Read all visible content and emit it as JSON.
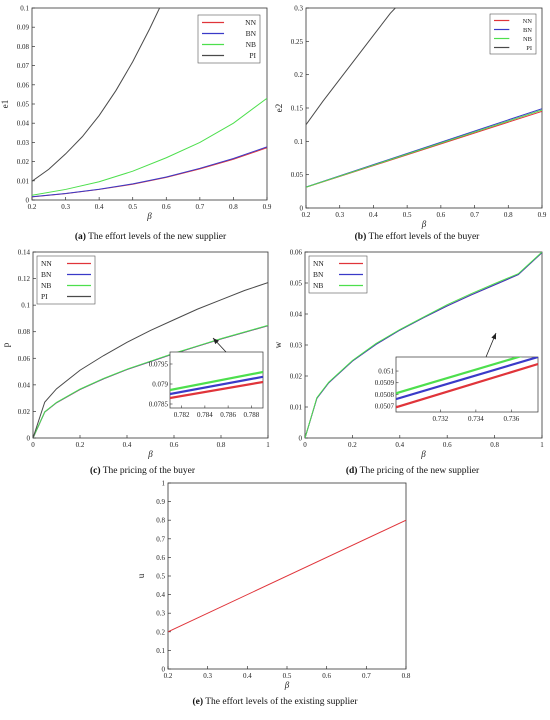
{
  "chart_data": [
    {
      "id": "a",
      "type": "line",
      "caption_tag": "(a)",
      "caption_text": "The effort levels of the new supplier",
      "xlabel": "β",
      "ylabel": "e1",
      "xlim": [
        0.2,
        0.9
      ],
      "ylim": [
        0,
        0.1
      ],
      "xticks": [
        "0.2",
        "0.3",
        "0.4",
        "0.5",
        "0.6",
        "0.7",
        "0.8",
        "0.9"
      ],
      "yticks": [
        "0",
        "0.01",
        "0.02",
        "0.03",
        "0.04",
        "0.05",
        "0.06",
        "0.07",
        "0.08",
        "0.09",
        "0.1"
      ],
      "legend_position": "top-right",
      "legend": [
        "NN",
        "BN",
        "NB",
        "PI"
      ],
      "series": [
        {
          "name": "NN",
          "color": "#e0343a",
          "x": [
            0.2,
            0.3,
            0.4,
            0.5,
            0.6,
            0.7,
            0.8,
            0.9
          ],
          "y": [
            0.0016,
            0.0033,
            0.0055,
            0.0082,
            0.0118,
            0.0162,
            0.0212,
            0.0272
          ]
        },
        {
          "name": "BN",
          "color": "#3a3ac8",
          "x": [
            0.2,
            0.3,
            0.4,
            0.5,
            0.6,
            0.7,
            0.8,
            0.9
          ],
          "y": [
            0.0017,
            0.0034,
            0.0056,
            0.0084,
            0.012,
            0.0165,
            0.0216,
            0.0277
          ]
        },
        {
          "name": "NB",
          "color": "#4ddf4d",
          "x": [
            0.2,
            0.3,
            0.4,
            0.5,
            0.6,
            0.7,
            0.8,
            0.9
          ],
          "y": [
            0.0025,
            0.0055,
            0.0095,
            0.015,
            0.022,
            0.03,
            0.04,
            0.053
          ]
        },
        {
          "name": "PI",
          "color": "#4a4a4a",
          "x": [
            0.2,
            0.25,
            0.3,
            0.35,
            0.4,
            0.45,
            0.5,
            0.55,
            0.58
          ],
          "y": [
            0.0098,
            0.016,
            0.024,
            0.033,
            0.044,
            0.057,
            0.072,
            0.089,
            0.1
          ]
        }
      ]
    },
    {
      "id": "b",
      "type": "line",
      "caption_tag": "(b)",
      "caption_text": "The effort levels of the buyer",
      "xlabel": "β",
      "ylabel": "e2",
      "xlim": [
        0.2,
        0.9
      ],
      "ylim": [
        0,
        0.3
      ],
      "xticks": [
        "0.2",
        "0.3",
        "0.4",
        "0.5",
        "0.6",
        "0.7",
        "0.8",
        "0.9"
      ],
      "yticks": [
        "0",
        "0.05",
        "0.1",
        "0.15",
        "0.2",
        "0.25",
        "0.3"
      ],
      "legend_position": "top-right",
      "legend": [
        "NN",
        "BN",
        "NB",
        "PI"
      ],
      "series": [
        {
          "name": "NN",
          "color": "#e0343a",
          "x": [
            0.2,
            0.9
          ],
          "y": [
            0.031,
            0.145
          ]
        },
        {
          "name": "BN",
          "color": "#3a3ac8",
          "x": [
            0.2,
            0.9
          ],
          "y": [
            0.0315,
            0.149
          ]
        },
        {
          "name": "NB",
          "color": "#4ddf4d",
          "x": [
            0.2,
            0.9
          ],
          "y": [
            0.0312,
            0.147
          ]
        },
        {
          "name": "PI",
          "color": "#4a4a4a",
          "x": [
            0.2,
            0.25,
            0.3,
            0.35,
            0.4,
            0.45,
            0.465
          ],
          "y": [
            0.125,
            0.16,
            0.193,
            0.226,
            0.259,
            0.292,
            0.3
          ]
        }
      ]
    },
    {
      "id": "c",
      "type": "line",
      "caption_tag": "(c)",
      "caption_text": "The pricing of the buyer",
      "xlabel": "β",
      "ylabel": "p",
      "xlim": [
        0,
        1
      ],
      "ylim": [
        0,
        0.14
      ],
      "xticks": [
        "0",
        "0.2",
        "0.4",
        "0.6",
        "0.8",
        "1"
      ],
      "yticks": [
        "0",
        "0.02",
        "0.04",
        "0.06",
        "0.08",
        "0.1",
        "0.12",
        "0.14"
      ],
      "legend_position": "top-left",
      "legend": [
        "NN",
        "BN",
        "NB",
        "PI"
      ],
      "series": [
        {
          "name": "NN",
          "color": "#e0343a",
          "x": [
            0,
            0.05,
            0.1,
            0.2,
            0.3,
            0.4,
            0.5,
            0.6,
            0.7,
            0.8,
            0.9,
            1
          ],
          "y": [
            0,
            0.0195,
            0.0265,
            0.0365,
            0.0445,
            0.0515,
            0.0575,
            0.0635,
            0.069,
            0.0745,
            0.0795,
            0.0845
          ]
        },
        {
          "name": "BN",
          "color": "#3a3ac8",
          "x": [
            0,
            0.05,
            0.1,
            0.2,
            0.3,
            0.4,
            0.5,
            0.6,
            0.7,
            0.8,
            0.9,
            1
          ],
          "y": [
            0,
            0.0196,
            0.0266,
            0.0366,
            0.0446,
            0.0516,
            0.0576,
            0.0636,
            0.0691,
            0.0746,
            0.0796,
            0.0846
          ]
        },
        {
          "name": "NB",
          "color": "#4ddf4d",
          "x": [
            0,
            0.05,
            0.1,
            0.2,
            0.3,
            0.4,
            0.5,
            0.6,
            0.7,
            0.8,
            0.9,
            1
          ],
          "y": [
            0,
            0.0197,
            0.0268,
            0.0368,
            0.0448,
            0.0518,
            0.0578,
            0.0638,
            0.0693,
            0.0748,
            0.0798,
            0.0848
          ]
        },
        {
          "name": "PI",
          "color": "#4a4a4a",
          "x": [
            0,
            0.05,
            0.1,
            0.2,
            0.3,
            0.4,
            0.5,
            0.6,
            0.7,
            0.8,
            0.9,
            1
          ],
          "y": [
            0,
            0.027,
            0.037,
            0.051,
            0.062,
            0.072,
            0.081,
            0.089,
            0.097,
            0.104,
            0.111,
            0.117
          ]
        }
      ],
      "inset": {
        "xlim": [
          0.781,
          0.789
        ],
        "ylim": [
          0.0784,
          0.0798
        ],
        "xticks": [
          "0.782",
          "0.784",
          "0.786",
          "0.788"
        ],
        "yticks": [
          "0.0785",
          "0.079",
          "0.0795"
        ],
        "series": [
          {
            "name": "NN",
            "color": "#e0343a",
            "y": [
              0.07865,
              0.07905
            ]
          },
          {
            "name": "BN",
            "color": "#3a3ac8",
            "y": [
              0.07875,
              0.07918
            ]
          },
          {
            "name": "NB",
            "color": "#4ddf4d",
            "y": [
              0.07885,
              0.0793
            ]
          }
        ]
      }
    },
    {
      "id": "d",
      "type": "line",
      "caption_tag": "(d)",
      "caption_text": "The pricing of the new supplier",
      "xlabel": "β",
      "ylabel": "w",
      "xlim": [
        0,
        1
      ],
      "ylim": [
        0,
        0.06
      ],
      "xticks": [
        "0",
        "0.2",
        "0.4",
        "0.6",
        "0.8",
        "1"
      ],
      "yticks": [
        "0",
        "0.01",
        "0.02",
        "0.03",
        "0.04",
        "0.05",
        "0.06"
      ],
      "legend_position": "top-left",
      "legend": [
        "NN",
        "BN",
        "NB"
      ],
      "series": [
        {
          "name": "NN",
          "color": "#e0343a",
          "x": [
            0,
            0.05,
            0.1,
            0.2,
            0.3,
            0.4,
            0.5,
            0.6,
            0.7,
            0.8,
            0.9,
            1
          ],
          "y": [
            0,
            0.0128,
            0.0178,
            0.0248,
            0.0302,
            0.0348,
            0.0388,
            0.0426,
            0.0461,
            0.0494,
            0.0527,
            0.0598
          ]
        },
        {
          "name": "BN",
          "color": "#3a3ac8",
          "x": [
            0,
            0.05,
            0.1,
            0.2,
            0.3,
            0.4,
            0.5,
            0.6,
            0.7,
            0.8,
            0.9,
            1
          ],
          "y": [
            0,
            0.0128,
            0.0178,
            0.0248,
            0.0302,
            0.0348,
            0.0388,
            0.0426,
            0.0461,
            0.0494,
            0.0527,
            0.0598
          ]
        },
        {
          "name": "NB",
          "color": "#4ddf4d",
          "x": [
            0,
            0.05,
            0.1,
            0.2,
            0.3,
            0.4,
            0.5,
            0.6,
            0.7,
            0.8,
            0.9,
            1
          ],
          "y": [
            0,
            0.013,
            0.018,
            0.025,
            0.0305,
            0.035,
            0.039,
            0.043,
            0.0465,
            0.0498,
            0.053,
            0.06
          ]
        }
      ],
      "inset": {
        "xlim": [
          0.7295,
          0.7375
        ],
        "ylim": [
          0.05065,
          0.05112
        ],
        "xticks": [
          "0.732",
          "0.734",
          "0.736"
        ],
        "yticks": [
          "0.0507",
          "0.0508",
          "0.0509",
          "0.051"
        ],
        "series": [
          {
            "name": "NN",
            "color": "#e0343a",
            "y": [
              0.05069,
              0.05106
            ]
          },
          {
            "name": "BN",
            "color": "#3a3ac8",
            "y": [
              0.05076,
              0.05112
            ]
          },
          {
            "name": "NB",
            "color": "#4ddf4d",
            "y": [
              0.05081,
              0.05117
            ]
          }
        ]
      }
    },
    {
      "id": "e",
      "type": "line",
      "caption_tag": "(e)",
      "caption_text": "The effort levels of the existing supplier",
      "xlabel": "β",
      "ylabel": "u",
      "xlim": [
        0.2,
        0.8
      ],
      "ylim": [
        0,
        1
      ],
      "xticks": [
        "0.2",
        "0.3",
        "0.4",
        "0.5",
        "0.6",
        "0.7",
        "0.8"
      ],
      "yticks": [
        "0",
        "0.1",
        "0.2",
        "0.3",
        "0.4",
        "0.5",
        "0.6",
        "0.7",
        "0.8",
        "0.9",
        "1"
      ],
      "legend_position": "none",
      "legend": [],
      "series": [
        {
          "name": "",
          "color": "#e0343a",
          "x": [
            0.2,
            0.8
          ],
          "y": [
            0.2,
            0.8
          ]
        }
      ]
    }
  ]
}
